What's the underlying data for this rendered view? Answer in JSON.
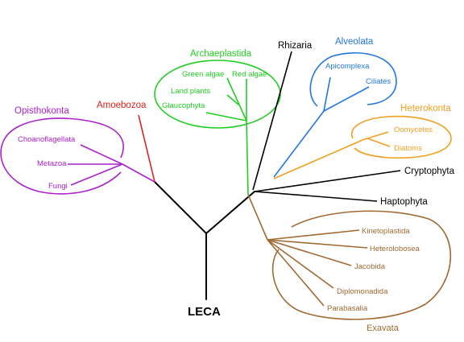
{
  "colors": {
    "black": "#000000",
    "opisthokonta": "#aa22cc",
    "amoebozoa": "#e0201a",
    "archaeplastida": "#22cc22",
    "alveolata": "#2277dd",
    "heterokonta": "#f0a020",
    "exavata": "#a06a32"
  },
  "root": {
    "label": "LECA"
  },
  "groups": {
    "opisthokonta": {
      "label": "Opisthokonta",
      "leaves": [
        "Choanoflagellata",
        "Metazoa",
        "Fungi"
      ]
    },
    "amoebozoa": {
      "label": "Amoebozoa"
    },
    "archaeplastida": {
      "label": "Archaeplastida",
      "leaves": [
        "Green algae",
        "Red algae",
        "Land plants",
        "Glaucophyta"
      ]
    },
    "rhizaria": {
      "label": "Rhizaria"
    },
    "alveolata": {
      "label": "Alveolata",
      "leaves": [
        "Apicomplexa",
        "Ciliates"
      ]
    },
    "heterokonta": {
      "label": "Heterokonta",
      "leaves": [
        "Oomycetes",
        "Diatoms"
      ]
    },
    "cryptophyta": {
      "label": "Cryptophyta"
    },
    "haptophyta": {
      "label": "Haptophyta"
    },
    "exavata": {
      "label": "Exavata",
      "leaves": [
        "Kinetoplastida",
        "Heterolobosea",
        "Jacobida",
        "Diplomonadida",
        "Parabasalia"
      ]
    }
  }
}
